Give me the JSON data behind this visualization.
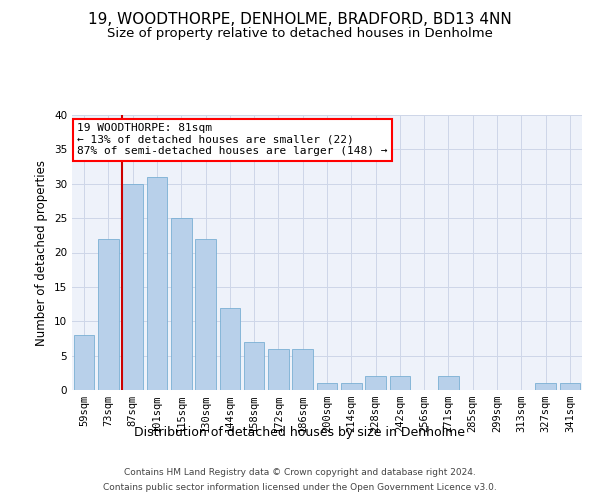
{
  "title1": "19, WOODTHORPE, DENHOLME, BRADFORD, BD13 4NN",
  "title2": "Size of property relative to detached houses in Denholme",
  "xlabel": "Distribution of detached houses by size in Denholme",
  "ylabel": "Number of detached properties",
  "categories": [
    "59sqm",
    "73sqm",
    "87sqm",
    "101sqm",
    "115sqm",
    "130sqm",
    "144sqm",
    "158sqm",
    "172sqm",
    "186sqm",
    "200sqm",
    "214sqm",
    "228sqm",
    "242sqm",
    "256sqm",
    "271sqm",
    "285sqm",
    "299sqm",
    "313sqm",
    "327sqm",
    "341sqm"
  ],
  "values": [
    8,
    22,
    30,
    31,
    25,
    22,
    12,
    7,
    6,
    6,
    1,
    1,
    2,
    2,
    0,
    2,
    0,
    0,
    0,
    1,
    1
  ],
  "bar_color": "#b8d0ea",
  "bar_edge_color": "#7aafd4",
  "property_label": "19 WOODTHORPE: 81sqm",
  "annotation_line1": "← 13% of detached houses are smaller (22)",
  "annotation_line2": "87% of semi-detached houses are larger (148) →",
  "vline_x_index": 2,
  "vline_color": "#cc0000",
  "ylim": [
    0,
    40
  ],
  "yticks": [
    0,
    5,
    10,
    15,
    20,
    25,
    30,
    35,
    40
  ],
  "footnote1": "Contains HM Land Registry data © Crown copyright and database right 2024.",
  "footnote2": "Contains public sector information licensed under the Open Government Licence v3.0.",
  "bg_color": "#eef2fa",
  "grid_color": "#cdd6e8",
  "title1_fontsize": 11,
  "title2_fontsize": 9.5,
  "xlabel_fontsize": 9,
  "ylabel_fontsize": 8.5,
  "tick_fontsize": 7.5,
  "annotation_fontsize": 8,
  "footnote_fontsize": 6.5
}
